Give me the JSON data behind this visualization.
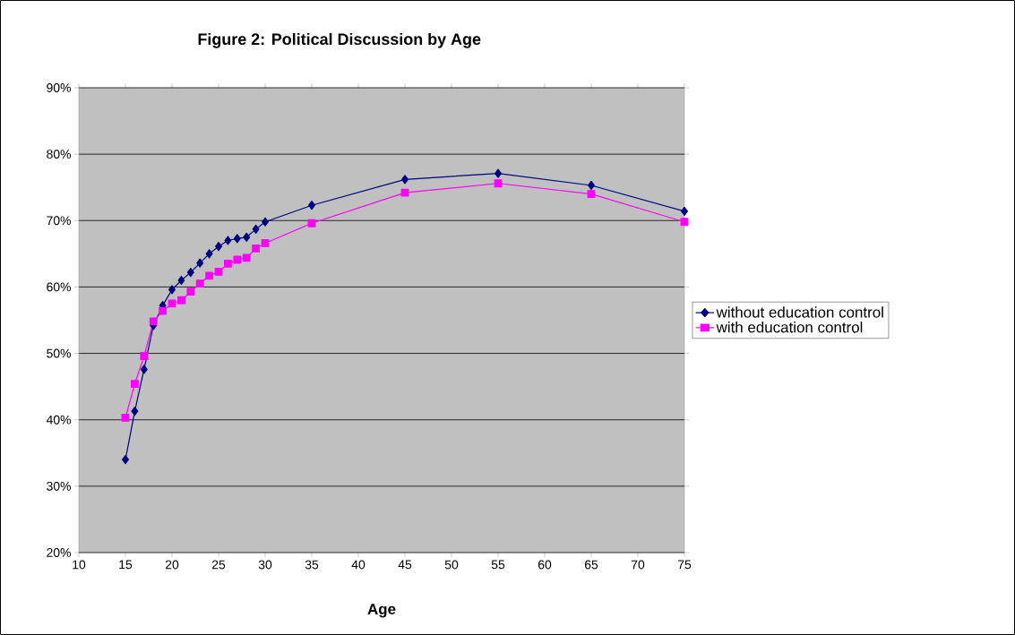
{
  "chart_data": {
    "type": "line",
    "title": "Figure 2: Political Discussion by Age",
    "xlabel": "Age",
    "x": [
      15,
      16,
      17,
      18,
      19,
      20,
      21,
      22,
      23,
      24,
      25,
      26,
      27,
      28,
      29,
      30,
      35,
      45,
      55,
      65,
      75
    ],
    "series": [
      {
        "name": "without education control",
        "color": "#000080",
        "marker": "diamond",
        "values": [
          34.0,
          41.3,
          47.6,
          54.2,
          57.2,
          59.6,
          61.0,
          62.2,
          63.6,
          65.0,
          66.1,
          67.0,
          67.3,
          67.5,
          68.7,
          69.8,
          72.3,
          76.2,
          77.1,
          75.3,
          71.4
        ]
      },
      {
        "name": "with education control",
        "color": "#ff00ff",
        "marker": "square",
        "values": [
          40.3,
          45.4,
          49.6,
          54.8,
          56.4,
          57.5,
          58.0,
          59.3,
          60.5,
          61.7,
          62.3,
          63.5,
          64.1,
          64.4,
          65.8,
          66.6,
          69.6,
          74.2,
          75.6,
          74.0,
          69.8
        ]
      }
    ],
    "xlim": [
      10,
      75
    ],
    "xticks": [
      10,
      15,
      20,
      25,
      30,
      35,
      40,
      45,
      50,
      55,
      60,
      65,
      70,
      75
    ],
    "ylim": [
      20,
      90
    ],
    "yticks": [
      {
        "value": 20,
        "label": "20%"
      },
      {
        "value": 30,
        "label": "30%"
      },
      {
        "value": 40,
        "label": "40%"
      },
      {
        "value": 50,
        "label": "50%"
      },
      {
        "value": 60,
        "label": "60%"
      },
      {
        "value": 70,
        "label": "70%"
      },
      {
        "value": 80,
        "label": "80%"
      },
      {
        "value": 90,
        "label": "90%"
      }
    ],
    "grid": "y",
    "legend": "right",
    "line_style": "solid"
  }
}
